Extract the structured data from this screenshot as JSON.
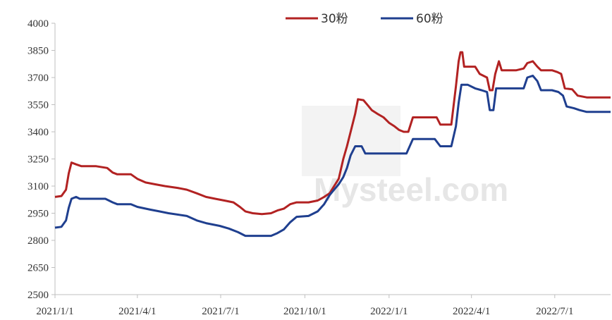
{
  "chart_data": {
    "type": "line",
    "title": "",
    "xlabel": "",
    "ylabel": "",
    "ylim": [
      2500,
      4000
    ],
    "yticks": [
      2500,
      2650,
      2800,
      2950,
      3100,
      3250,
      3400,
      3550,
      3700,
      3850,
      4000
    ],
    "xlim": [
      "2021-01-01",
      "2022-08-31"
    ],
    "xticks": [
      {
        "label": "2021/1/1",
        "date": "2021-01-01"
      },
      {
        "label": "2021/4/1",
        "date": "2021-04-01"
      },
      {
        "label": "2021/7/1",
        "date": "2021-07-01"
      },
      {
        "label": "2021/10/1",
        "date": "2021-10-01"
      },
      {
        "label": "2022/1/1",
        "date": "2022-01-01"
      },
      {
        "label": "2022/4/1",
        "date": "2022-04-01"
      },
      {
        "label": "2022/7/1",
        "date": "2022-07-01"
      }
    ],
    "grid": false,
    "legend": "top-center",
    "watermark": "Mysteel.com",
    "series": [
      {
        "name": "30粉",
        "color": "#b22222",
        "points": [
          [
            "2021-01-01",
            3040
          ],
          [
            "2021-01-08",
            3045
          ],
          [
            "2021-01-13",
            3080
          ],
          [
            "2021-01-16",
            3170
          ],
          [
            "2021-01-19",
            3230
          ],
          [
            "2021-01-24",
            3220
          ],
          [
            "2021-01-30",
            3210
          ],
          [
            "2021-02-15",
            3210
          ],
          [
            "2021-02-27",
            3200
          ],
          [
            "2021-03-05",
            3175
          ],
          [
            "2021-03-10",
            3165
          ],
          [
            "2021-03-25",
            3165
          ],
          [
            "2021-04-01",
            3140
          ],
          [
            "2021-04-10",
            3120
          ],
          [
            "2021-04-20",
            3110
          ],
          [
            "2021-05-01",
            3100
          ],
          [
            "2021-05-15",
            3090
          ],
          [
            "2021-05-25",
            3080
          ],
          [
            "2021-06-05",
            3060
          ],
          [
            "2021-06-15",
            3040
          ],
          [
            "2021-06-25",
            3030
          ],
          [
            "2021-07-05",
            3020
          ],
          [
            "2021-07-15",
            3010
          ],
          [
            "2021-07-22",
            2985
          ],
          [
            "2021-07-28",
            2960
          ],
          [
            "2021-08-05",
            2950
          ],
          [
            "2021-08-15",
            2945
          ],
          [
            "2021-08-25",
            2950
          ],
          [
            "2021-09-01",
            2965
          ],
          [
            "2021-09-08",
            2975
          ],
          [
            "2021-09-15",
            3000
          ],
          [
            "2021-09-22",
            3010
          ],
          [
            "2021-10-05",
            3010
          ],
          [
            "2021-10-15",
            3020
          ],
          [
            "2021-10-22",
            3040
          ],
          [
            "2021-10-28",
            3060
          ],
          [
            "2021-11-02",
            3100
          ],
          [
            "2021-11-07",
            3140
          ],
          [
            "2021-11-12",
            3250
          ],
          [
            "2021-11-16",
            3320
          ],
          [
            "2021-11-20",
            3400
          ],
          [
            "2021-11-25",
            3500
          ],
          [
            "2021-11-28",
            3580
          ],
          [
            "2021-12-04",
            3575
          ],
          [
            "2021-12-09",
            3545
          ],
          [
            "2021-12-13",
            3520
          ],
          [
            "2021-12-19",
            3500
          ],
          [
            "2021-12-26",
            3480
          ],
          [
            "2022-01-01",
            3450
          ],
          [
            "2022-01-07",
            3430
          ],
          [
            "2022-01-12",
            3410
          ],
          [
            "2022-01-17",
            3400
          ],
          [
            "2022-01-22",
            3400
          ],
          [
            "2022-01-27",
            3480
          ],
          [
            "2022-02-10",
            3480
          ],
          [
            "2022-02-22",
            3480
          ],
          [
            "2022-02-26",
            3440
          ],
          [
            "2022-03-10",
            3440
          ],
          [
            "2022-03-15",
            3650
          ],
          [
            "2022-03-18",
            3790
          ],
          [
            "2022-03-20",
            3840
          ],
          [
            "2022-03-22",
            3840
          ],
          [
            "2022-03-24",
            3760
          ],
          [
            "2022-04-05",
            3760
          ],
          [
            "2022-04-10",
            3720
          ],
          [
            "2022-04-18",
            3700
          ],
          [
            "2022-04-21",
            3630
          ],
          [
            "2022-04-24",
            3630
          ],
          [
            "2022-04-27",
            3720
          ],
          [
            "2022-05-01",
            3790
          ],
          [
            "2022-05-04",
            3740
          ],
          [
            "2022-05-20",
            3740
          ],
          [
            "2022-05-28",
            3750
          ],
          [
            "2022-06-01",
            3780
          ],
          [
            "2022-06-07",
            3790
          ],
          [
            "2022-06-12",
            3760
          ],
          [
            "2022-06-16",
            3740
          ],
          [
            "2022-06-28",
            3740
          ],
          [
            "2022-07-04",
            3730
          ],
          [
            "2022-07-08",
            3720
          ],
          [
            "2022-07-12",
            3640
          ],
          [
            "2022-07-20",
            3635
          ],
          [
            "2022-07-26",
            3600
          ],
          [
            "2022-08-05",
            3590
          ],
          [
            "2022-08-31",
            3590
          ]
        ]
      },
      {
        "name": "60粉",
        "color": "#1f3f8f",
        "points": [
          [
            "2021-01-01",
            2870
          ],
          [
            "2021-01-08",
            2875
          ],
          [
            "2021-01-13",
            2910
          ],
          [
            "2021-01-16",
            2980
          ],
          [
            "2021-01-19",
            3030
          ],
          [
            "2021-01-24",
            3040
          ],
          [
            "2021-01-28",
            3030
          ],
          [
            "2021-02-25",
            3030
          ],
          [
            "2021-03-05",
            3010
          ],
          [
            "2021-03-10",
            3000
          ],
          [
            "2021-03-25",
            3000
          ],
          [
            "2021-04-01",
            2985
          ],
          [
            "2021-04-15",
            2970
          ],
          [
            "2021-04-25",
            2960
          ],
          [
            "2021-05-05",
            2950
          ],
          [
            "2021-05-25",
            2935
          ],
          [
            "2021-06-05",
            2910
          ],
          [
            "2021-06-15",
            2895
          ],
          [
            "2021-06-30",
            2880
          ],
          [
            "2021-07-10",
            2865
          ],
          [
            "2021-07-20",
            2845
          ],
          [
            "2021-07-28",
            2825
          ],
          [
            "2021-08-05",
            2825
          ],
          [
            "2021-08-25",
            2825
          ],
          [
            "2021-09-01",
            2840
          ],
          [
            "2021-09-08",
            2860
          ],
          [
            "2021-09-15",
            2900
          ],
          [
            "2021-09-22",
            2930
          ],
          [
            "2021-10-05",
            2935
          ],
          [
            "2021-10-15",
            2960
          ],
          [
            "2021-10-22",
            3000
          ],
          [
            "2021-10-28",
            3050
          ],
          [
            "2021-11-02",
            3080
          ],
          [
            "2021-11-07",
            3110
          ],
          [
            "2021-11-12",
            3150
          ],
          [
            "2021-11-16",
            3200
          ],
          [
            "2021-11-20",
            3270
          ],
          [
            "2021-11-25",
            3320
          ],
          [
            "2021-12-02",
            3320
          ],
          [
            "2021-12-06",
            3280
          ],
          [
            "2021-12-20",
            3280
          ],
          [
            "2022-01-10",
            3280
          ],
          [
            "2022-01-20",
            3280
          ],
          [
            "2022-01-27",
            3360
          ],
          [
            "2022-02-20",
            3360
          ],
          [
            "2022-02-26",
            3320
          ],
          [
            "2022-03-10",
            3320
          ],
          [
            "2022-03-15",
            3430
          ],
          [
            "2022-03-18",
            3560
          ],
          [
            "2022-03-21",
            3660
          ],
          [
            "2022-03-28",
            3660
          ],
          [
            "2022-04-05",
            3640
          ],
          [
            "2022-04-12",
            3630
          ],
          [
            "2022-04-18",
            3620
          ],
          [
            "2022-04-21",
            3520
          ],
          [
            "2022-04-25",
            3520
          ],
          [
            "2022-04-28",
            3640
          ],
          [
            "2022-05-10",
            3640
          ],
          [
            "2022-05-28",
            3640
          ],
          [
            "2022-06-01",
            3700
          ],
          [
            "2022-06-07",
            3710
          ],
          [
            "2022-06-12",
            3680
          ],
          [
            "2022-06-16",
            3630
          ],
          [
            "2022-06-28",
            3630
          ],
          [
            "2022-07-05",
            3620
          ],
          [
            "2022-07-10",
            3600
          ],
          [
            "2022-07-14",
            3540
          ],
          [
            "2022-07-22",
            3530
          ],
          [
            "2022-07-28",
            3520
          ],
          [
            "2022-08-05",
            3510
          ],
          [
            "2022-08-31",
            3510
          ]
        ]
      }
    ]
  }
}
